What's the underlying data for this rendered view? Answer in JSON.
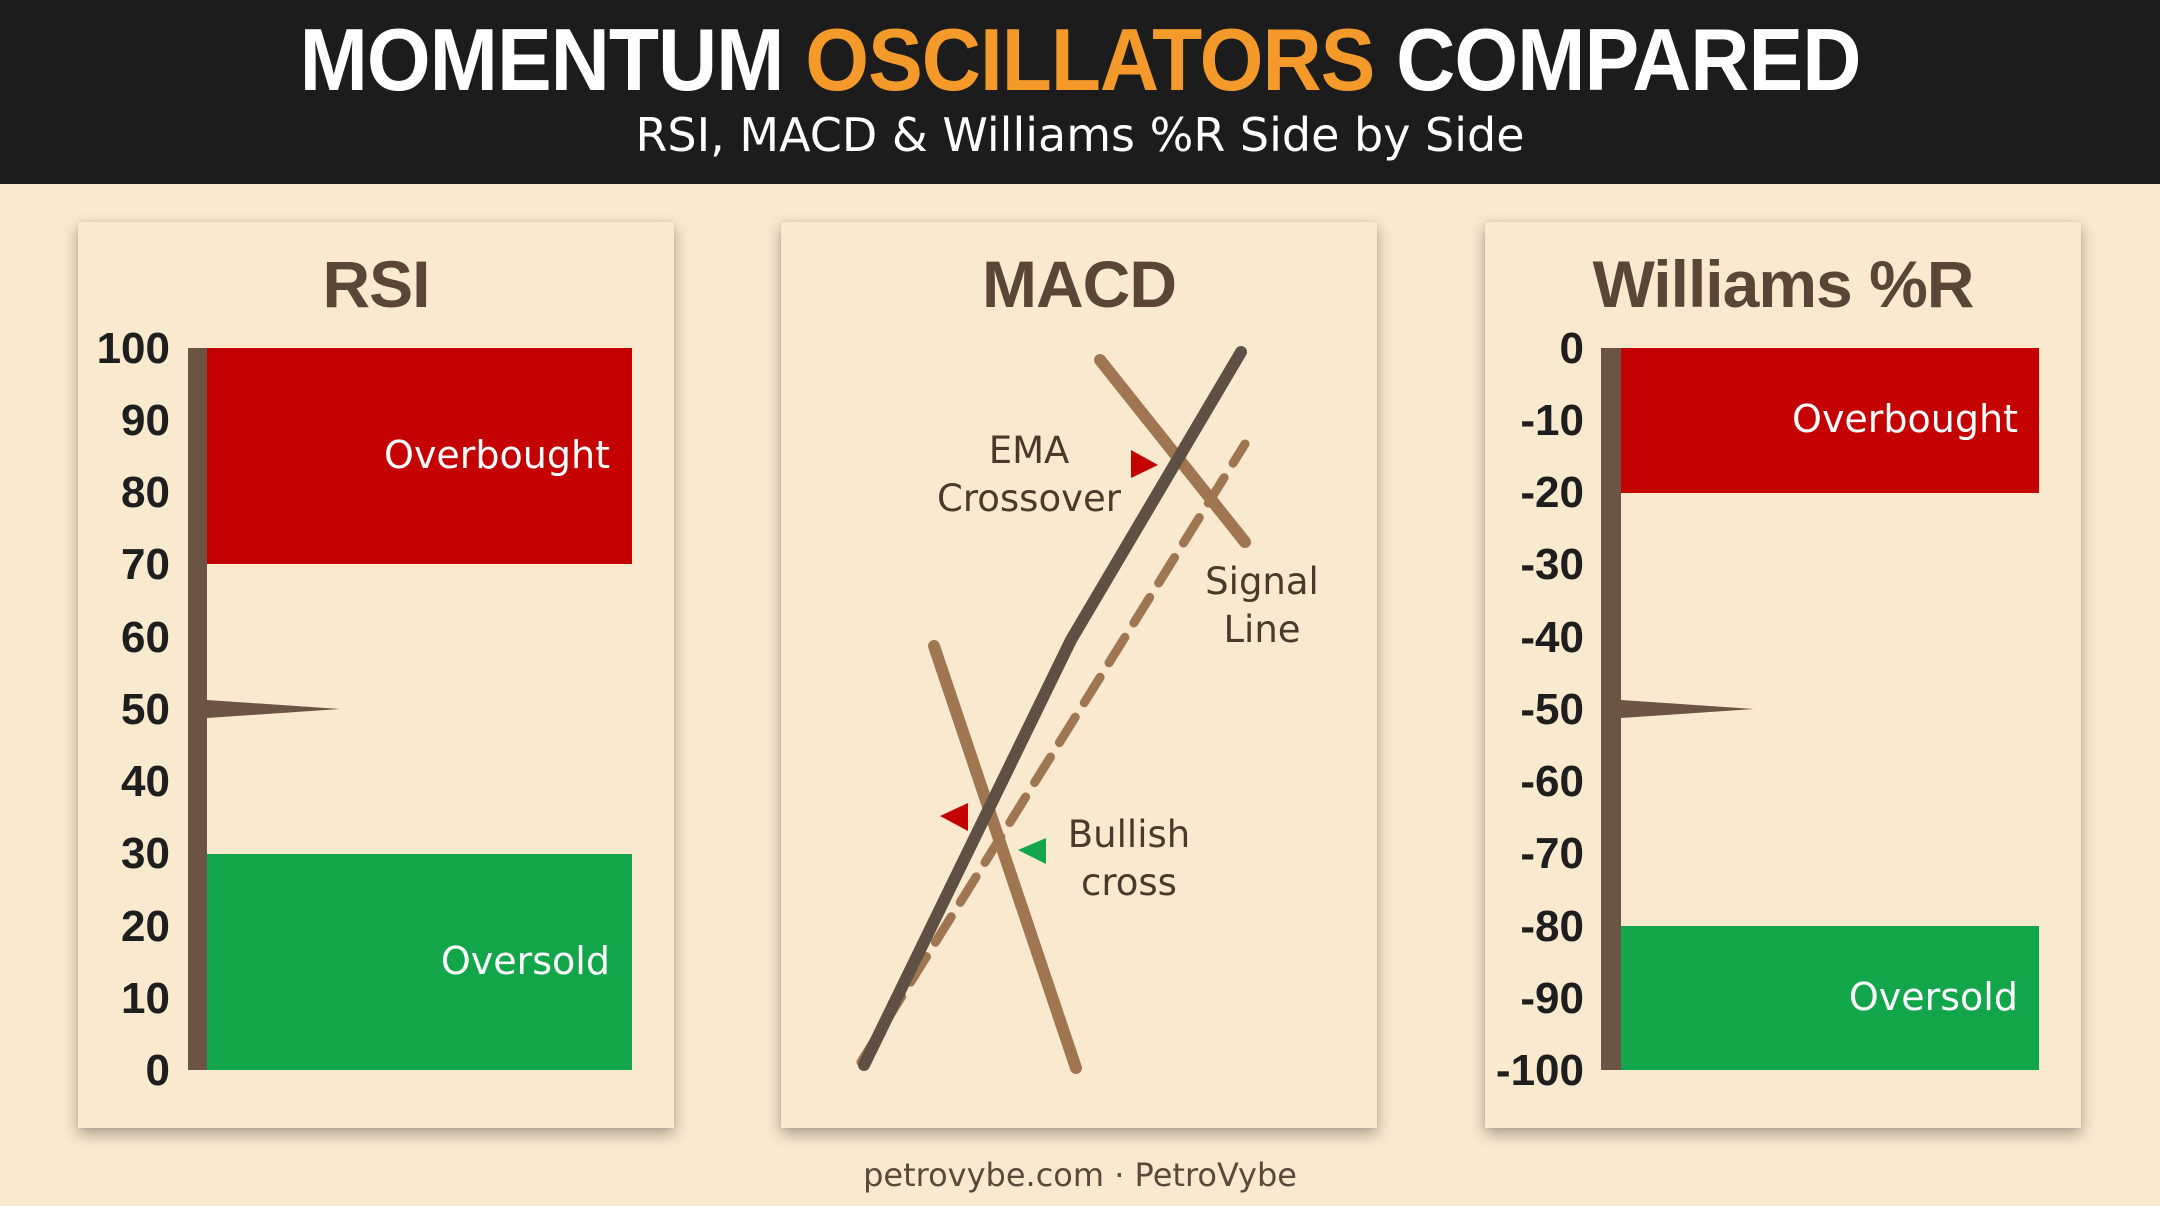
{
  "header": {
    "title_part1": "MOMENTUM",
    "title_accent": "OSCILLATORS",
    "title_part2": "COMPARED",
    "subtitle": "RSI, MACD & Williams %R Side by Side"
  },
  "colors": {
    "header_bg": "#1c1c1c",
    "accent": "#f39a2b",
    "background": "#f8e9cf",
    "overbought": "#c40000",
    "oversold": "#12a54a",
    "axis": "#6b5444",
    "macd_line": "#5e5045",
    "signal_line": "#a07650",
    "marker_red": "#c40000",
    "marker_green": "#12a54a"
  },
  "panels": {
    "rsi": {
      "title": "RSI",
      "ticks": [
        "100",
        "90",
        "80",
        "70",
        "60",
        "50",
        "40",
        "30",
        "20",
        "10",
        "0"
      ],
      "scale": [
        0,
        100
      ],
      "overbought": {
        "label": "Overbought",
        "from": 70,
        "to": 100
      },
      "oversold": {
        "label": "Oversold",
        "from": 0,
        "to": 30
      },
      "midline": 50
    },
    "macd": {
      "title": "MACD",
      "annotations": {
        "ema_crossover": [
          "EMA",
          "Crossover"
        ],
        "signal_line": [
          "Signal",
          "Line"
        ],
        "bullish_cross": [
          "Bullish",
          "cross"
        ]
      }
    },
    "williams": {
      "title": "Williams %R",
      "ticks": [
        "0",
        "-10",
        "-20",
        "-30",
        "-40",
        "-50",
        "-60",
        "-70",
        "-80",
        "-90",
        "-100"
      ],
      "scale": [
        -100,
        0
      ],
      "overbought": {
        "label": "Overbought",
        "from": -20,
        "to": 0
      },
      "oversold": {
        "label": "Oversold",
        "from": -100,
        "to": -80
      },
      "midline": -50
    }
  },
  "footer": "petrovybe.com · PetroVybe"
}
